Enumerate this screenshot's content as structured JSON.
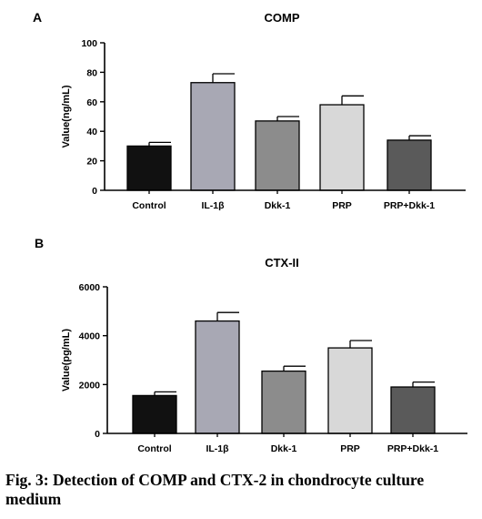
{
  "chart_data": [
    {
      "panel": "A",
      "type": "bar",
      "title": "COMP",
      "xlabel": "",
      "ylabel": "Value(ng/mL)",
      "categories": [
        "Control",
        "IL-1β",
        "Dkk-1",
        "PRP",
        "PRP+Dkk-1"
      ],
      "values": [
        30,
        73,
        47,
        58,
        34
      ],
      "errors": [
        2.5,
        6,
        3,
        6,
        3
      ],
      "ylim": [
        0,
        100
      ],
      "yticks": [
        0,
        20,
        40,
        60,
        80,
        100
      ],
      "colors": [
        "#111111",
        "#a8a8b4",
        "#8c8c8c",
        "#d8d8d8",
        "#5a5a5a"
      ],
      "grid": false
    },
    {
      "panel": "B",
      "type": "bar",
      "title": "CTX-II",
      "xlabel": "",
      "ylabel": "Value(pg/mL)",
      "categories": [
        "Control",
        "IL-1β",
        "Dkk-1",
        "PRP",
        "PRP+Dkk-1"
      ],
      "values": [
        1550,
        4600,
        2550,
        3500,
        1900
      ],
      "errors": [
        150,
        350,
        200,
        300,
        200
      ],
      "ylim": [
        0,
        6000
      ],
      "yticks": [
        0,
        2000,
        4000,
        6000
      ],
      "colors": [
        "#111111",
        "#a8a8b4",
        "#8c8c8c",
        "#d8d8d8",
        "#5a5a5a"
      ],
      "grid": false
    }
  ],
  "caption": "Fig. 3: Detection of COMP and CTX-2 in chondrocyte culture medium"
}
